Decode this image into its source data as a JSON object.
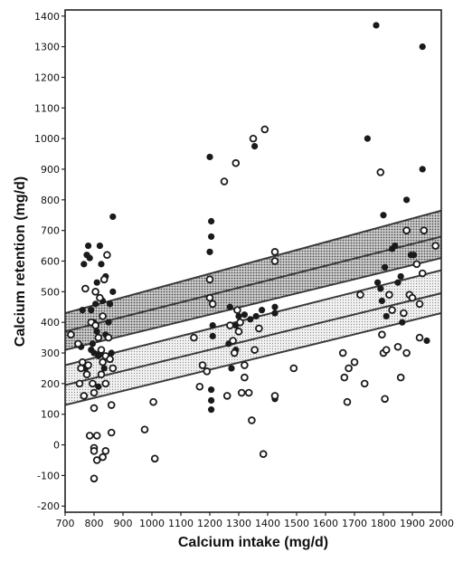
{
  "chart_data": {
    "type": "scatter",
    "title": "",
    "xlabel": "Calcium intake (mg/d)",
    "ylabel": "Calcium retention (mg/d)",
    "xlim": [
      700,
      2000
    ],
    "ylim": [
      -220,
      1420
    ],
    "x_ticks": [
      700,
      800,
      900,
      1000,
      1100,
      1200,
      1300,
      1400,
      1500,
      1600,
      1700,
      1800,
      1900,
      2000
    ],
    "y_ticks": [
      -200,
      -100,
      0,
      100,
      200,
      300,
      400,
      500,
      600,
      700,
      800,
      900,
      1000,
      1100,
      1200,
      1300,
      1400
    ],
    "grid": false,
    "legend": "none",
    "colors": {
      "filled": "#1a1a1a",
      "open": "#1a1a1a",
      "band_line": "#3a3a3a",
      "band_fill": "#b8b8b8"
    },
    "series": [
      {
        "marker": "filled-circle",
        "points": [
          [
            755,
            320
          ],
          [
            760,
            440
          ],
          [
            765,
            590
          ],
          [
            770,
            250
          ],
          [
            775,
            620
          ],
          [
            780,
            650
          ],
          [
            785,
            610
          ],
          [
            790,
            310
          ],
          [
            790,
            440
          ],
          [
            795,
            330
          ],
          [
            800,
            400
          ],
          [
            800,
            300
          ],
          [
            805,
            460
          ],
          [
            810,
            530
          ],
          [
            810,
            370
          ],
          [
            815,
            290
          ],
          [
            815,
            190
          ],
          [
            820,
            650
          ],
          [
            820,
            300
          ],
          [
            825,
            590
          ],
          [
            830,
            470
          ],
          [
            830,
            270
          ],
          [
            835,
            250
          ],
          [
            840,
            550
          ],
          [
            840,
            360
          ],
          [
            845,
            620
          ],
          [
            850,
            400
          ],
          [
            855,
            460
          ],
          [
            860,
            300
          ],
          [
            865,
            500
          ],
          [
            865,
            745
          ],
          [
            1200,
            940
          ],
          [
            1205,
            730
          ],
          [
            1205,
            680
          ],
          [
            1205,
            180
          ],
          [
            1205,
            145
          ],
          [
            1205,
            115
          ],
          [
            1210,
            390
          ],
          [
            1210,
            355
          ],
          [
            1200,
            630
          ],
          [
            1265,
            330
          ],
          [
            1270,
            450
          ],
          [
            1275,
            250
          ],
          [
            1290,
            310
          ],
          [
            1290,
            390
          ],
          [
            1300,
            420
          ],
          [
            1320,
            425
          ],
          [
            1340,
            410
          ],
          [
            1355,
            975
          ],
          [
            1360,
            420
          ],
          [
            1380,
            440
          ],
          [
            1425,
            450
          ],
          [
            1425,
            430
          ],
          [
            1425,
            150
          ],
          [
            1745,
            1000
          ],
          [
            1775,
            1370
          ],
          [
            1780,
            530
          ],
          [
            1790,
            510
          ],
          [
            1795,
            470
          ],
          [
            1800,
            750
          ],
          [
            1805,
            580
          ],
          [
            1810,
            420
          ],
          [
            1830,
            640
          ],
          [
            1840,
            650
          ],
          [
            1850,
            530
          ],
          [
            1860,
            550
          ],
          [
            1865,
            400
          ],
          [
            1880,
            800
          ],
          [
            1895,
            620
          ],
          [
            1905,
            620
          ],
          [
            1935,
            1300
          ],
          [
            1935,
            900
          ],
          [
            1950,
            340
          ]
        ]
      },
      {
        "marker": "open-circle",
        "points": [
          [
            720,
            360
          ],
          [
            745,
            330
          ],
          [
            750,
            200
          ],
          [
            755,
            250
          ],
          [
            760,
            270
          ],
          [
            765,
            160
          ],
          [
            770,
            510
          ],
          [
            775,
            230
          ],
          [
            780,
            260
          ],
          [
            785,
            30
          ],
          [
            790,
            400
          ],
          [
            795,
            200
          ],
          [
            800,
            120
          ],
          [
            800,
            170
          ],
          [
            800,
            -10
          ],
          [
            800,
            -20
          ],
          [
            800,
            -110
          ],
          [
            805,
            500
          ],
          [
            805,
            390
          ],
          [
            810,
            30
          ],
          [
            810,
            -50
          ],
          [
            815,
            350
          ],
          [
            820,
            480
          ],
          [
            825,
            310
          ],
          [
            825,
            230
          ],
          [
            830,
            420
          ],
          [
            830,
            270
          ],
          [
            830,
            -40
          ],
          [
            835,
            540
          ],
          [
            840,
            290
          ],
          [
            840,
            200
          ],
          [
            840,
            -20
          ],
          [
            845,
            620
          ],
          [
            850,
            350
          ],
          [
            855,
            280
          ],
          [
            860,
            130
          ],
          [
            860,
            40
          ],
          [
            865,
            250
          ],
          [
            975,
            50
          ],
          [
            1005,
            140
          ],
          [
            1010,
            -45
          ],
          [
            1145,
            350
          ],
          [
            1165,
            190
          ],
          [
            1175,
            260
          ],
          [
            1190,
            240
          ],
          [
            1200,
            540
          ],
          [
            1200,
            480
          ],
          [
            1210,
            460
          ],
          [
            1250,
            860
          ],
          [
            1260,
            160
          ],
          [
            1270,
            390
          ],
          [
            1280,
            340
          ],
          [
            1285,
            300
          ],
          [
            1290,
            920
          ],
          [
            1295,
            440
          ],
          [
            1300,
            370
          ],
          [
            1305,
            400
          ],
          [
            1310,
            170
          ],
          [
            1320,
            220
          ],
          [
            1320,
            260
          ],
          [
            1335,
            170
          ],
          [
            1345,
            80
          ],
          [
            1350,
            1000
          ],
          [
            1355,
            310
          ],
          [
            1370,
            380
          ],
          [
            1385,
            -30
          ],
          [
            1390,
            1030
          ],
          [
            1425,
            630
          ],
          [
            1425,
            600
          ],
          [
            1425,
            160
          ],
          [
            1490,
            250
          ],
          [
            1660,
            300
          ],
          [
            1665,
            220
          ],
          [
            1675,
            140
          ],
          [
            1680,
            250
          ],
          [
            1700,
            270
          ],
          [
            1720,
            490
          ],
          [
            1735,
            200
          ],
          [
            1790,
            890
          ],
          [
            1795,
            360
          ],
          [
            1800,
            300
          ],
          [
            1805,
            150
          ],
          [
            1810,
            310
          ],
          [
            1820,
            490
          ],
          [
            1830,
            440
          ],
          [
            1850,
            320
          ],
          [
            1860,
            220
          ],
          [
            1870,
            430
          ],
          [
            1880,
            300
          ],
          [
            1880,
            700
          ],
          [
            1890,
            490
          ],
          [
            1900,
            480
          ],
          [
            1915,
            590
          ],
          [
            1925,
            350
          ],
          [
            1925,
            460
          ],
          [
            1935,
            560
          ],
          [
            1940,
            700
          ],
          [
            1980,
            650
          ]
        ]
      }
    ],
    "bands": [
      {
        "fill": "dense",
        "lower": [
          [
            700,
            310
          ],
          [
            2000,
            610
          ]
        ],
        "middle": [
          [
            700,
            370
          ],
          [
            2000,
            680
          ]
        ],
        "upper": [
          [
            700,
            430
          ],
          [
            2000,
            765
          ]
        ]
      },
      {
        "fill": "light",
        "lower": [
          [
            700,
            130
          ],
          [
            2000,
            430
          ]
        ],
        "middle": [
          [
            700,
            195
          ],
          [
            2000,
            495
          ]
        ],
        "upper": [
          [
            700,
            260
          ],
          [
            2000,
            570
          ]
        ]
      }
    ]
  }
}
